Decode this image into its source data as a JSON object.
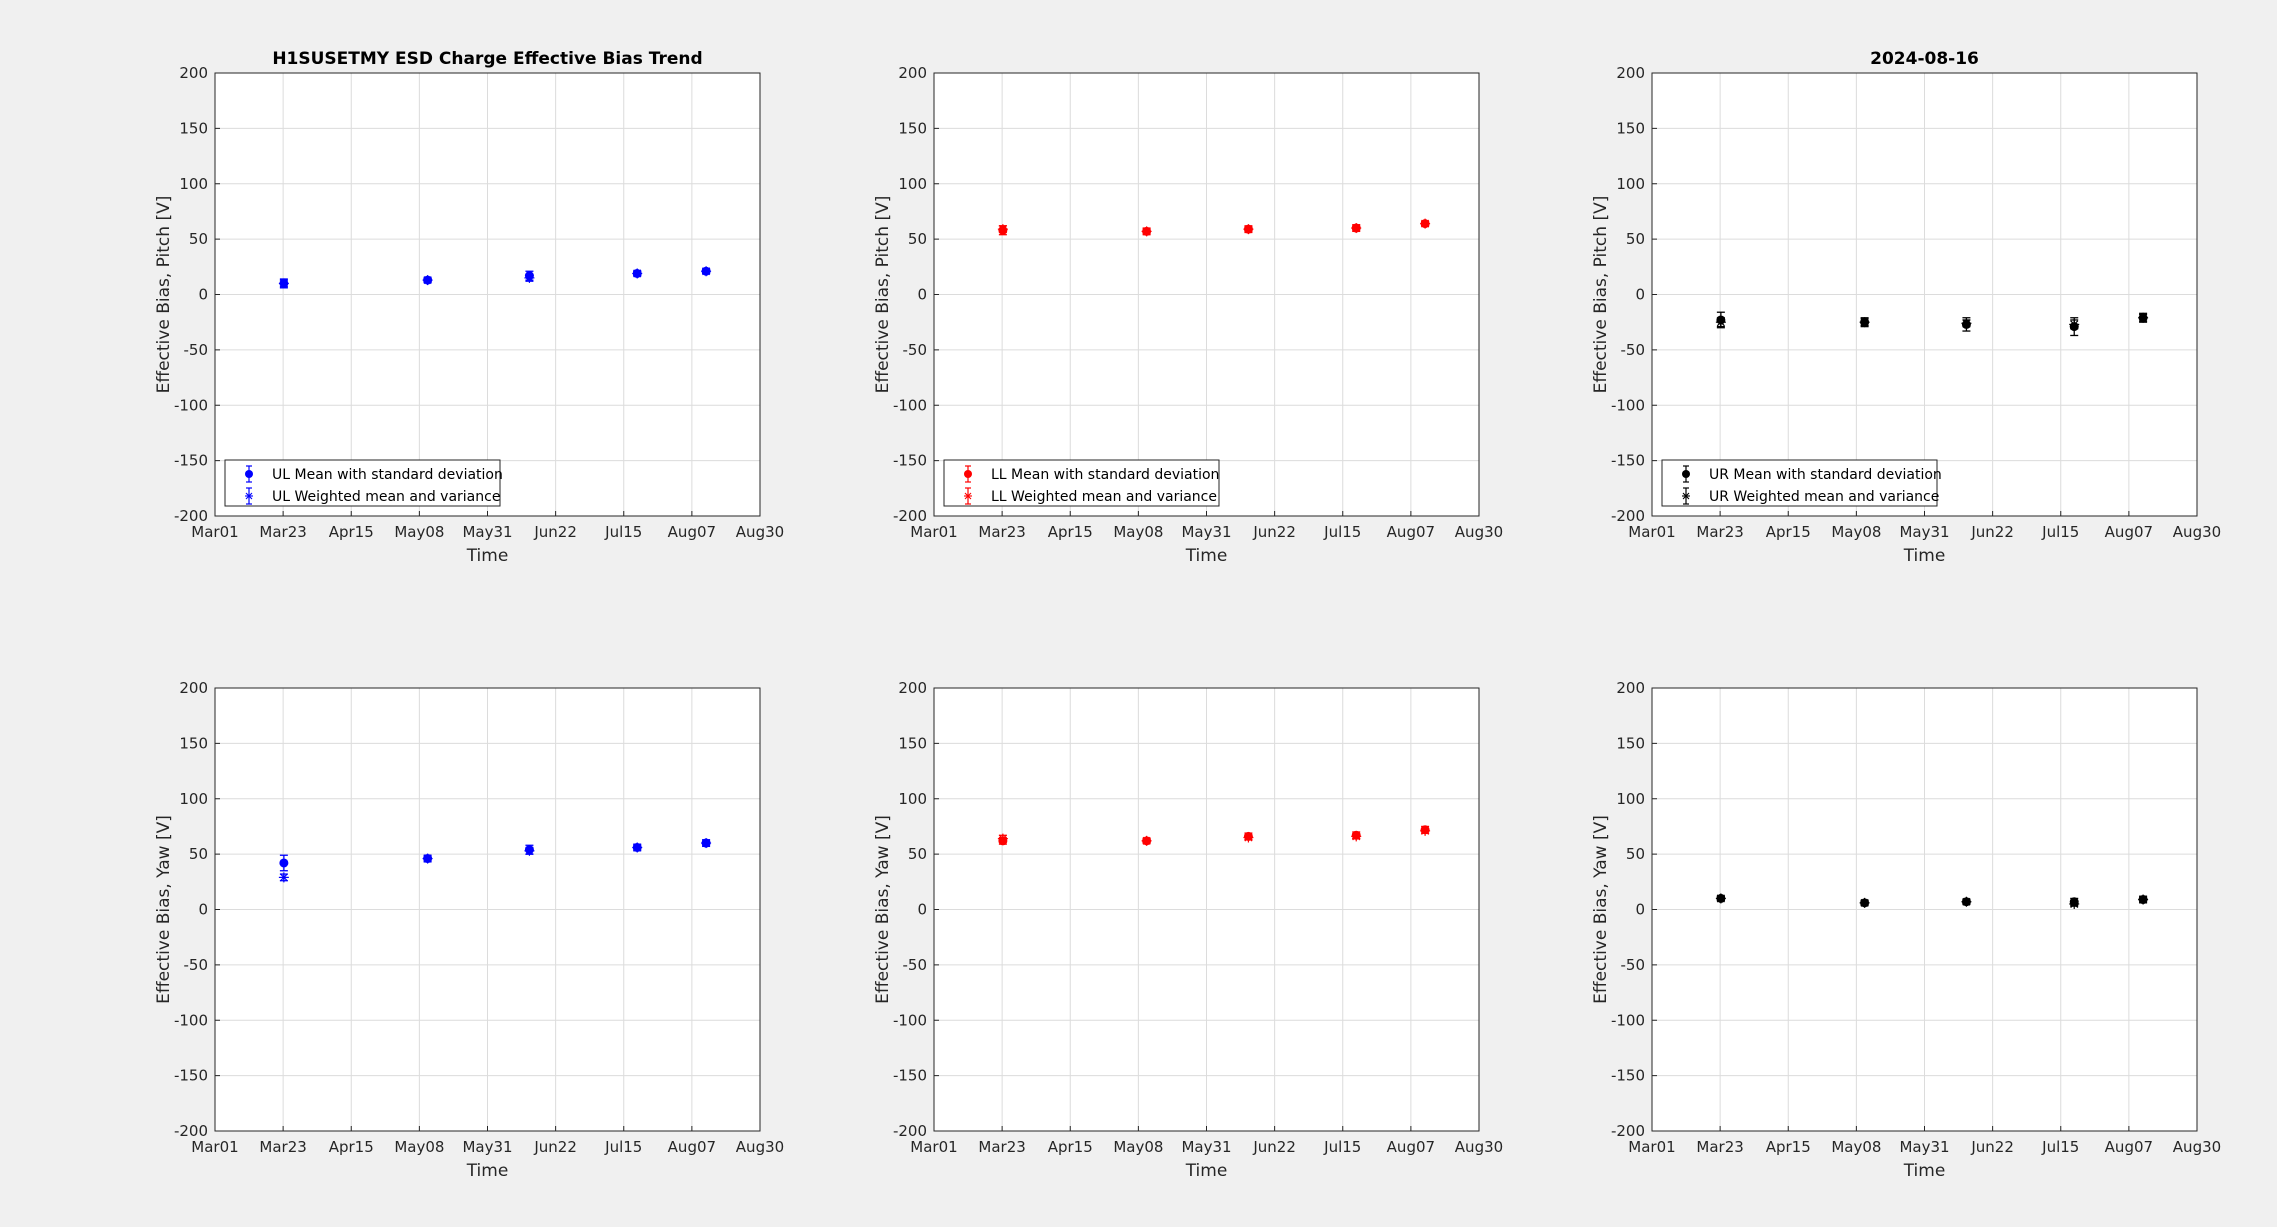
{
  "figure": {
    "background": "#f0f0f0",
    "x_ticks": [
      "Mar01",
      "Mar23",
      "Apr15",
      "May08",
      "May31",
      "Jun22",
      "Jul15",
      "Aug07",
      "Aug30"
    ],
    "y_ticks": [
      "200",
      "150",
      "100",
      "50",
      "0",
      "-50",
      "-100",
      "-150",
      "-200"
    ]
  },
  "chart_data": [
    {
      "type": "scatter",
      "title": "H1SUSETMY ESD Charge Effective Bias Trend",
      "xlabel": "Time",
      "ylabel": "Effective Bias, Pitch [V]",
      "xlim": [
        "2024-03-01",
        "2024-08-30"
      ],
      "ylim": [
        -200,
        200
      ],
      "grid": true,
      "legend_position": "bottom-left",
      "color": "#0000ff",
      "series": [
        {
          "name": "UL Mean with standard deviation",
          "marker": "filled-circle",
          "x": [
            "2024-03-24",
            "2024-05-11",
            "2024-06-14",
            "2024-07-20",
            "2024-08-12"
          ],
          "y": [
            10,
            13,
            17,
            19,
            21
          ],
          "err": [
            4,
            2,
            4,
            2,
            2
          ]
        },
        {
          "name": "UL Weighted mean and variance",
          "marker": "asterisk",
          "x": [
            "2024-03-24",
            "2024-05-11",
            "2024-06-14",
            "2024-07-20",
            "2024-08-12"
          ],
          "y": [
            10,
            13,
            15,
            19,
            21
          ],
          "err": [
            3,
            2,
            3,
            2,
            2
          ]
        }
      ]
    },
    {
      "type": "scatter",
      "title": "",
      "xlabel": "Time",
      "ylabel": "Effective Bias, Pitch [V]",
      "xlim": [
        "2024-03-01",
        "2024-08-30"
      ],
      "ylim": [
        -200,
        200
      ],
      "grid": true,
      "legend_position": "bottom-left",
      "color": "#ff0000",
      "series": [
        {
          "name": "LL Mean with standard deviation",
          "marker": "filled-circle",
          "x": [
            "2024-03-24",
            "2024-05-11",
            "2024-06-14",
            "2024-07-20",
            "2024-08-12"
          ],
          "y": [
            58,
            57,
            59,
            60,
            64
          ],
          "err": [
            4,
            3,
            3,
            3,
            2
          ]
        },
        {
          "name": "LL Weighted mean and variance",
          "marker": "asterisk",
          "x": [
            "2024-03-24",
            "2024-05-11",
            "2024-06-14",
            "2024-07-20",
            "2024-08-12"
          ],
          "y": [
            59,
            57,
            59,
            60,
            64
          ],
          "err": [
            3,
            2,
            2,
            2,
            2
          ]
        }
      ]
    },
    {
      "type": "scatter",
      "title": "2024-08-16",
      "xlabel": "Time",
      "ylabel": "Effective Bias, Pitch [V]",
      "xlim": [
        "2024-03-01",
        "2024-08-30"
      ],
      "ylim": [
        -200,
        200
      ],
      "grid": true,
      "legend_position": "bottom-left",
      "color": "#000000",
      "series": [
        {
          "name": "UR Mean with standard deviation",
          "marker": "filled-circle",
          "x": [
            "2024-03-24",
            "2024-05-11",
            "2024-06-14",
            "2024-07-20",
            "2024-08-12"
          ],
          "y": [
            -23,
            -25,
            -27,
            -29,
            -21
          ],
          "err": [
            7,
            4,
            6,
            8,
            4
          ]
        },
        {
          "name": "UR Weighted mean and variance",
          "marker": "asterisk",
          "x": [
            "2024-03-24",
            "2024-05-11",
            "2024-06-14",
            "2024-07-20",
            "2024-08-12"
          ],
          "y": [
            -25,
            -25,
            -26,
            -27,
            -21
          ],
          "err": [
            4,
            3,
            3,
            4,
            3
          ]
        }
      ]
    },
    {
      "type": "scatter",
      "title": "",
      "xlabel": "Time",
      "ylabel": "Effective Bias, Yaw [V]",
      "xlim": [
        "2024-03-01",
        "2024-08-30"
      ],
      "ylim": [
        -200,
        200
      ],
      "grid": true,
      "color": "#0000ff",
      "series": [
        {
          "marker": "filled-circle",
          "x": [
            "2024-03-24",
            "2024-05-11",
            "2024-06-14",
            "2024-07-20",
            "2024-08-12"
          ],
          "y": [
            42,
            46,
            54,
            56,
            60
          ],
          "err": [
            7,
            3,
            4,
            3,
            3
          ]
        },
        {
          "marker": "asterisk",
          "x": [
            "2024-03-24",
            "2024-05-11",
            "2024-06-14",
            "2024-07-20",
            "2024-08-12"
          ],
          "y": [
            29,
            46,
            53,
            56,
            60
          ],
          "err": [
            3,
            2,
            3,
            2,
            2
          ]
        }
      ]
    },
    {
      "type": "scatter",
      "title": "",
      "xlabel": "Time",
      "ylabel": "Effective Bias, Yaw [V]",
      "xlim": [
        "2024-03-01",
        "2024-08-30"
      ],
      "ylim": [
        -200,
        200
      ],
      "grid": true,
      "color": "#ff0000",
      "series": [
        {
          "marker": "filled-circle",
          "x": [
            "2024-03-24",
            "2024-05-11",
            "2024-06-14",
            "2024-07-20",
            "2024-08-12"
          ],
          "y": [
            62,
            62,
            66,
            67,
            72
          ],
          "err": [
            3,
            2,
            3,
            3,
            3
          ]
        },
        {
          "marker": "asterisk",
          "x": [
            "2024-03-24",
            "2024-05-11",
            "2024-06-14",
            "2024-07-20",
            "2024-08-12"
          ],
          "y": [
            64,
            62,
            65,
            66,
            71
          ],
          "err": [
            3,
            2,
            2,
            2,
            2
          ]
        }
      ]
    },
    {
      "type": "scatter",
      "title": "",
      "xlabel": "Time",
      "ylabel": "Effective Bias, Yaw [V]",
      "xlim": [
        "2024-03-01",
        "2024-08-30"
      ],
      "ylim": [
        -200,
        200
      ],
      "grid": true,
      "color": "#000000",
      "series": [
        {
          "marker": "filled-circle",
          "x": [
            "2024-03-24",
            "2024-05-11",
            "2024-06-14",
            "2024-07-20",
            "2024-08-12"
          ],
          "y": [
            10,
            6,
            7,
            7,
            9
          ],
          "err": [
            2,
            2,
            2,
            3,
            3
          ]
        },
        {
          "marker": "asterisk",
          "x": [
            "2024-03-24",
            "2024-05-11",
            "2024-06-14",
            "2024-07-20",
            "2024-08-12"
          ],
          "y": [
            10,
            6,
            7,
            5,
            9
          ],
          "err": [
            2,
            2,
            2,
            2,
            2
          ]
        }
      ]
    }
  ]
}
